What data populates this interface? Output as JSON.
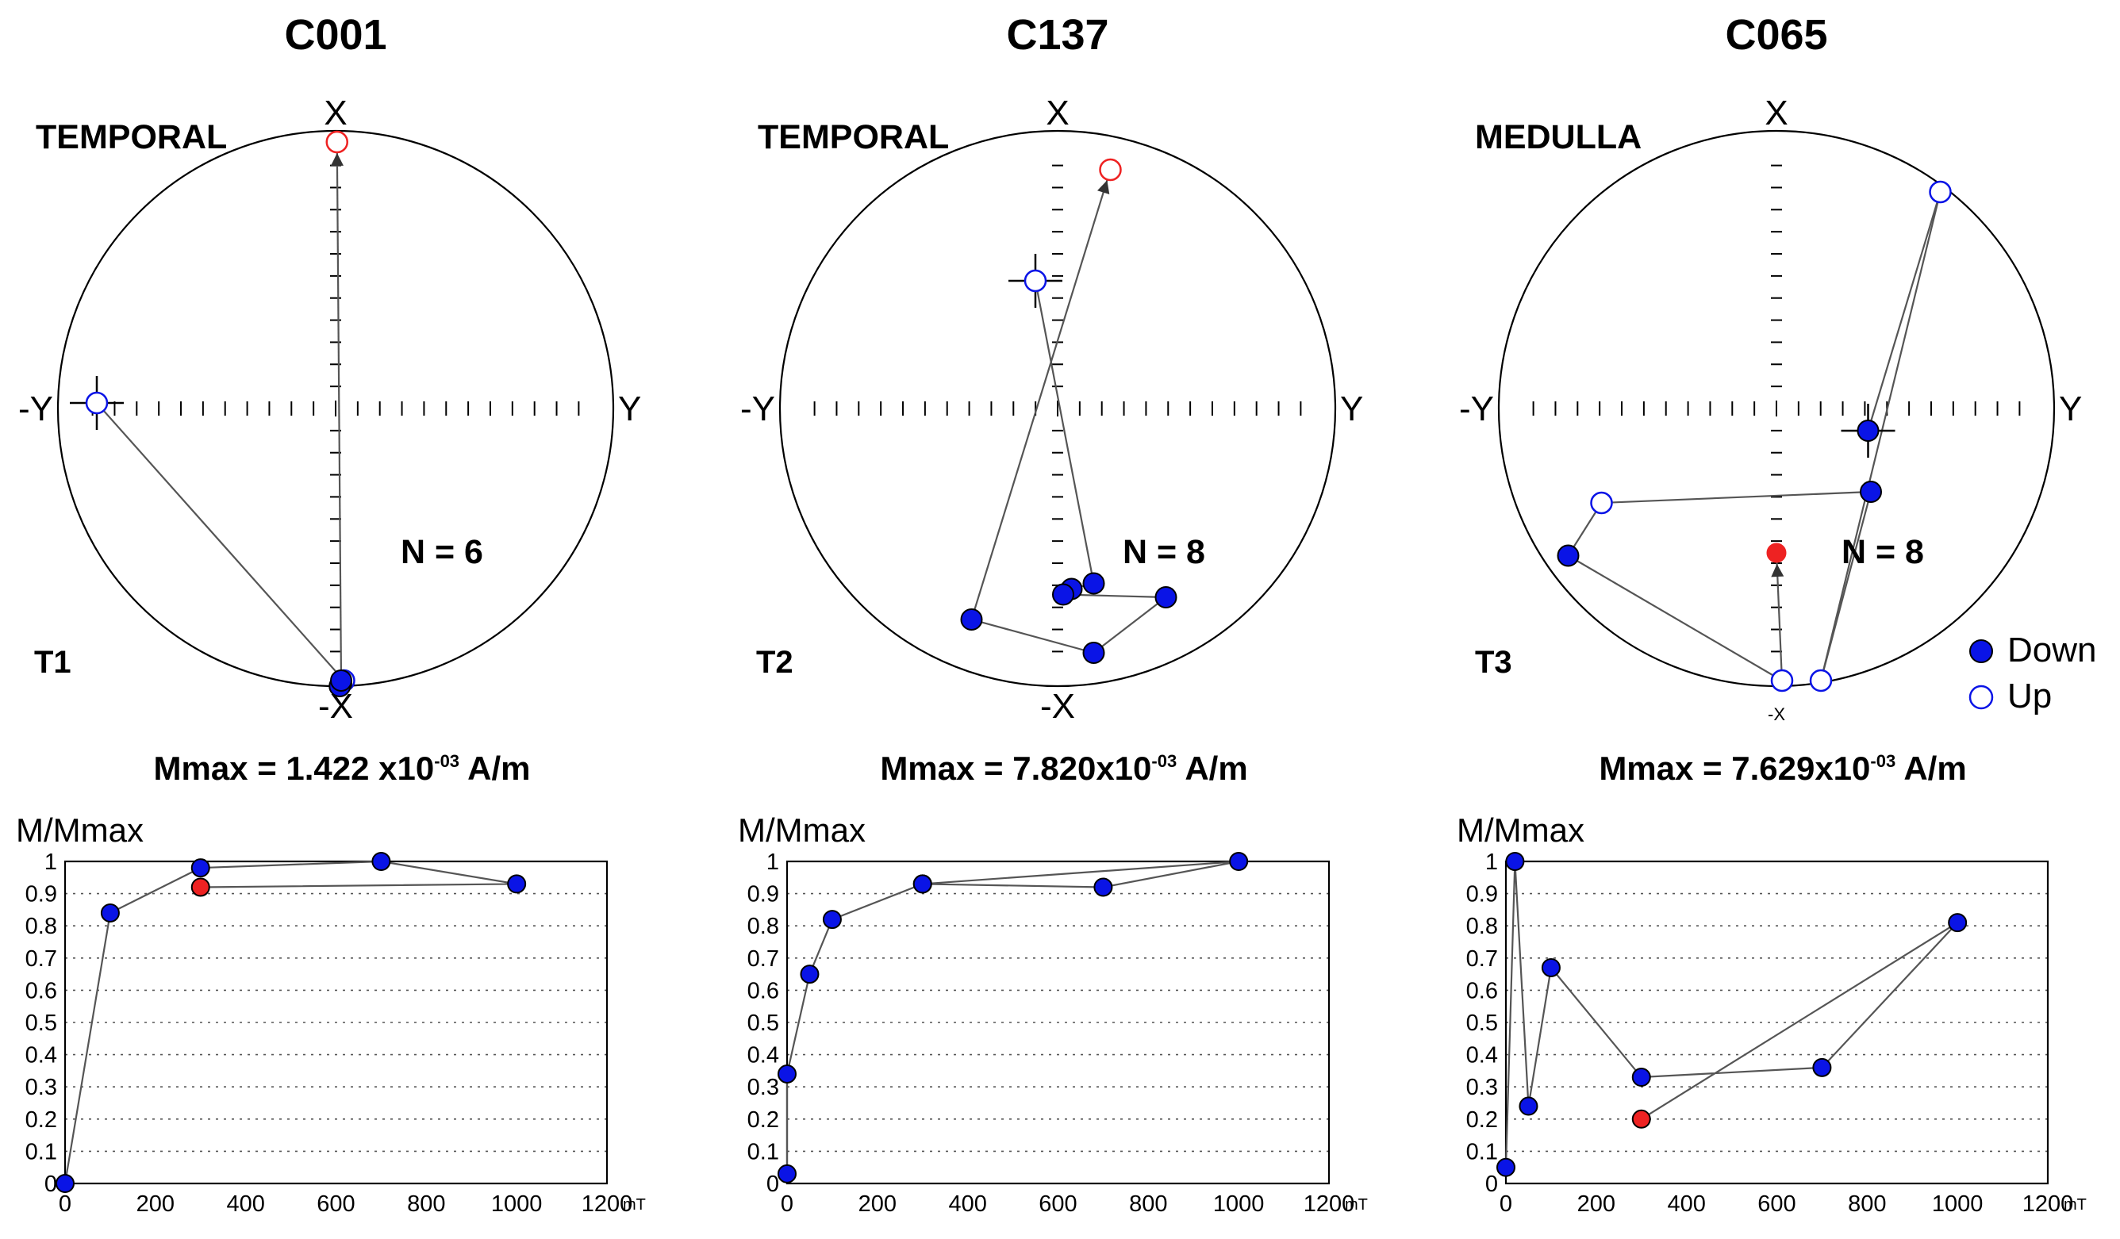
{
  "legend": {
    "down_label": "Down",
    "up_label": "Up",
    "down_color": "#0a14e6",
    "up_color": "#0a14e6",
    "highlight_color": "#ee2222"
  },
  "chart_data": [
    {
      "type": "stereonet+scatter",
      "title": "C001",
      "region": "TEMPORAL",
      "tlabel": "T1",
      "n_label": "N = 6",
      "axes": {
        "top": "X",
        "bottom": "-X",
        "left": "-Y",
        "right": "Y"
      },
      "mmax": {
        "prefix": "Mmax =  1.422 x10",
        "exp": "-03",
        "suffix": " A/m"
      },
      "stereonet": {
        "path": [
          {
            "dx": -0.86,
            "dy": 0.02,
            "type": "up",
            "cross": true
          },
          {
            "dx": 0.03,
            "dy": -0.98,
            "type": "up"
          },
          {
            "dx": 0.02,
            "dy": -0.99,
            "type": "down"
          },
          {
            "dx": 0.015,
            "dy": -1.0,
            "type": "down"
          },
          {
            "dx": 0.02,
            "dy": -0.98,
            "type": "down"
          },
          {
            "dx": 0.005,
            "dy": 0.96,
            "type": "highlight-up"
          }
        ]
      },
      "decay": {
        "ylabel": "M/Mmax",
        "unit": "mT",
        "xlim": [
          0,
          1200
        ],
        "ylim": [
          0,
          1
        ],
        "x": [
          0,
          100,
          300,
          700,
          1000,
          300
        ],
        "y": [
          0.0,
          0.84,
          0.98,
          1.0,
          0.93,
          0.92
        ],
        "highlight_index": 5
      }
    },
    {
      "type": "stereonet+scatter",
      "title": "C137",
      "region": "TEMPORAL",
      "tlabel": "T2",
      "n_label": "N = 8",
      "axes": {
        "top": "X",
        "bottom": "-X",
        "left": "-Y",
        "right": "Y"
      },
      "mmax": {
        "prefix": "Mmax =  7.820x10",
        "exp": "-03",
        "suffix": " A/m"
      },
      "stereonet": {
        "path": [
          {
            "dx": -0.08,
            "dy": 0.46,
            "type": "up",
            "cross": true
          },
          {
            "dx": 0.13,
            "dy": -0.63,
            "type": "down"
          },
          {
            "dx": 0.05,
            "dy": -0.65,
            "type": "down"
          },
          {
            "dx": 0.02,
            "dy": -0.67,
            "type": "down"
          },
          {
            "dx": 0.39,
            "dy": -0.68,
            "type": "down"
          },
          {
            "dx": 0.13,
            "dy": -0.88,
            "type": "down"
          },
          {
            "dx": -0.31,
            "dy": -0.76,
            "type": "down"
          },
          {
            "dx": 0.19,
            "dy": 0.86,
            "type": "highlight-up"
          }
        ]
      },
      "decay": {
        "ylabel": "M/Mmax",
        "unit": "mT",
        "xlim": [
          0,
          1200
        ],
        "ylim": [
          0,
          1
        ],
        "x": [
          0,
          0,
          50,
          100,
          300,
          700,
          1000,
          300
        ],
        "y": [
          0.03,
          0.34,
          0.65,
          0.82,
          0.93,
          0.92,
          1.0,
          0.93
        ],
        "highlight_index": -1
      }
    },
    {
      "type": "stereonet+scatter",
      "title": "C065",
      "region": "MEDULLA",
      "tlabel": "T3",
      "n_label": "N = 8",
      "axes": {
        "top": "X",
        "bottom": "-X",
        "left": "-Y",
        "right": "Y"
      },
      "mmax": {
        "prefix": "Mmax =  7.629x10",
        "exp": "-03",
        "suffix": " A/m"
      },
      "stereonet": {
        "path": [
          {
            "dx": 0.33,
            "dy": -0.08,
            "type": "down",
            "cross": true
          },
          {
            "dx": 0.59,
            "dy": 0.78,
            "type": "up"
          },
          {
            "dx": 0.16,
            "dy": -0.98,
            "type": "up"
          },
          {
            "dx": 0.34,
            "dy": -0.3,
            "type": "down"
          },
          {
            "dx": -0.63,
            "dy": -0.34,
            "type": "up"
          },
          {
            "dx": -0.75,
            "dy": -0.53,
            "type": "down"
          },
          {
            "dx": 0.02,
            "dy": -0.98,
            "type": "up"
          },
          {
            "dx": 0.0,
            "dy": -0.52,
            "type": "highlight-down"
          }
        ]
      },
      "decay": {
        "ylabel": "M/Mmax",
        "unit": "mT",
        "xlim": [
          0,
          1200
        ],
        "ylim": [
          0,
          1
        ],
        "x": [
          0,
          20,
          50,
          100,
          300,
          700,
          1000,
          300
        ],
        "y": [
          0.05,
          1.0,
          0.24,
          0.67,
          0.33,
          0.36,
          0.81,
          0.2
        ],
        "highlight_index": 7
      }
    }
  ]
}
